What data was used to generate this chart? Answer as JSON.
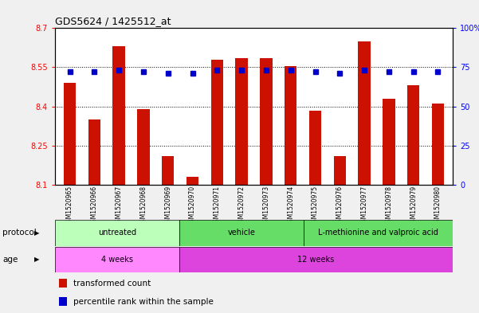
{
  "title": "GDS5624 / 1425512_at",
  "samples": [
    "GSM1520965",
    "GSM1520966",
    "GSM1520967",
    "GSM1520968",
    "GSM1520969",
    "GSM1520970",
    "GSM1520971",
    "GSM1520972",
    "GSM1520973",
    "GSM1520974",
    "GSM1520975",
    "GSM1520976",
    "GSM1520977",
    "GSM1520978",
    "GSM1520979",
    "GSM1520980"
  ],
  "bar_values": [
    8.49,
    8.35,
    8.63,
    8.39,
    8.21,
    8.13,
    8.58,
    8.585,
    8.585,
    8.555,
    8.385,
    8.21,
    8.65,
    8.43,
    8.48,
    8.41
  ],
  "percentile_values": [
    72,
    72,
    73,
    72,
    71,
    71,
    73,
    73,
    73,
    73,
    72,
    71,
    73,
    72,
    72,
    72
  ],
  "bar_color": "#cc1100",
  "dot_color": "#0000cc",
  "ylim_left": [
    8.1,
    8.7
  ],
  "ylim_right": [
    0,
    100
  ],
  "yticks_left": [
    8.1,
    8.25,
    8.4,
    8.55,
    8.7
  ],
  "yticks_right": [
    0,
    25,
    50,
    75,
    100
  ],
  "ytick_labels_left": [
    "8.1",
    "8.25",
    "8.4",
    "8.55",
    "8.7"
  ],
  "ytick_labels_right": [
    "0",
    "25",
    "50",
    "75",
    "100%"
  ],
  "gridlines": [
    8.25,
    8.4,
    8.55
  ],
  "protocol_groups": [
    {
      "label": "untreated",
      "start": 0,
      "end": 5,
      "color": "#bbffbb"
    },
    {
      "label": "vehicle",
      "start": 5,
      "end": 10,
      "color": "#66dd66"
    },
    {
      "label": "L-methionine and valproic acid",
      "start": 10,
      "end": 16,
      "color": "#66dd66"
    }
  ],
  "age_groups": [
    {
      "label": "4 weeks",
      "start": 0,
      "end": 5,
      "color": "#ff88ff"
    },
    {
      "label": "12 weeks",
      "start": 5,
      "end": 16,
      "color": "#dd44dd"
    }
  ],
  "protocol_row_label": "protocol",
  "age_row_label": "age",
  "legend_bar_label": "transformed count",
  "legend_dot_label": "percentile rank within the sample",
  "plot_bg_color": "#ffffff",
  "fig_bg_color": "#f0f0f0"
}
